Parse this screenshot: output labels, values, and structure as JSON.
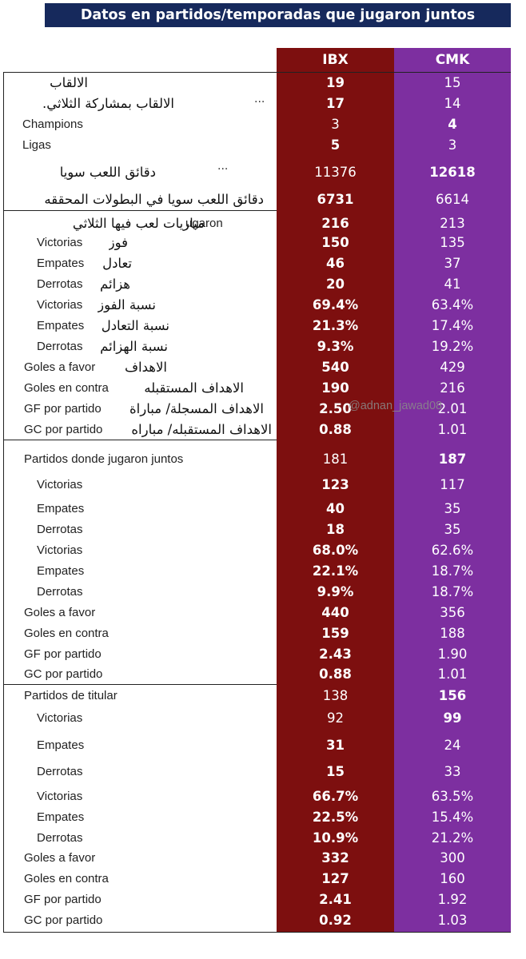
{
  "title": "Datos en partidos/temporadas que jugaron juntos",
  "columns": {
    "ibx": "IBX",
    "cmk": "CMK"
  },
  "watermark": "@adnan_jawad08",
  "dots": "...",
  "colors": {
    "ibx": "#7d0f0f",
    "cmk": "#7d2fa0",
    "title_bg": "#16295c"
  },
  "rows": [
    {
      "es": "",
      "ar": "الالقاب",
      "ibx": "19",
      "cmk": "15",
      "bold": "ibx"
    },
    {
      "es": "",
      "ar": "الالقاب بمشاركة الثلاثي.",
      "ibx": "17",
      "cmk": "14",
      "bold": "ibx"
    },
    {
      "es": "Champions",
      "ar": "",
      "ibx": "3",
      "cmk": "4",
      "bold": "cmk"
    },
    {
      "es": "Ligas",
      "ar": "",
      "ibx": "5",
      "cmk": "3",
      "bold": "ibx"
    },
    {
      "es": "",
      "ar": "دقائق اللعب سويا",
      "ibx": "11376",
      "cmk": "12618",
      "bold": "cmk"
    },
    {
      "es": "",
      "ar": "دقائق اللعب سويا في البطولات المحققه",
      "ibx": "6731",
      "cmk": "6614",
      "bold": "ibx"
    },
    {
      "es": "ugaron",
      "ar": "مباريات لعب فيها الثلاثي",
      "ibx": "216",
      "cmk": "213",
      "bold": "ibx"
    },
    {
      "es": "Victorias",
      "ar": "فوز",
      "ibx": "150",
      "cmk": "135",
      "bold": "ibx"
    },
    {
      "es": "Empates",
      "ar": "تعادل",
      "ibx": "46",
      "cmk": "37",
      "bold": "ibx"
    },
    {
      "es": "Derrotas",
      "ar": "هزائم",
      "ibx": "20",
      "cmk": "41",
      "bold": "ibx"
    },
    {
      "es": "Victorias",
      "ar": "نسبة الفوز",
      "ibx": "69.4%",
      "cmk": "63.4%",
      "bold": "ibx"
    },
    {
      "es": "Empates",
      "ar": "نسبة التعادل",
      "ibx": "21.3%",
      "cmk": "17.4%",
      "bold": "ibx"
    },
    {
      "es": "Derrotas",
      "ar": "نسبة الهزائم",
      "ibx": "9.3%",
      "cmk": "19.2%",
      "bold": "ibx"
    },
    {
      "es": "Goles a favor",
      "ar": "الاهداف",
      "ibx": "540",
      "cmk": "429",
      "bold": "ibx"
    },
    {
      "es": "Goles en contra",
      "ar": "الاهداف المستقبله",
      "ibx": "190",
      "cmk": "216",
      "bold": "ibx"
    },
    {
      "es": "GF por partido",
      "ar": "الاهداف المسجلة/ مباراة",
      "ibx": "2.50",
      "cmk": "2.01",
      "bold": "ibx"
    },
    {
      "es": "GC por partido",
      "ar": "الاهداف المستقبله/ مباراه",
      "ibx": "0.88",
      "cmk": "1.01",
      "bold": "ibx"
    },
    {
      "es": "Partidos donde jugaron juntos",
      "ar": "",
      "ibx": "181",
      "cmk": "187",
      "bold": "cmk"
    },
    {
      "es": "Victorias",
      "ar": "",
      "ibx": "123",
      "cmk": "117",
      "bold": "ibx"
    },
    {
      "es": "Empates",
      "ar": "",
      "ibx": "40",
      "cmk": "35",
      "bold": "ibx"
    },
    {
      "es": "Derrotas",
      "ar": "",
      "ibx": "18",
      "cmk": "35",
      "bold": "ibx"
    },
    {
      "es": "Victorias",
      "ar": "",
      "ibx": "68.0%",
      "cmk": "62.6%",
      "bold": "ibx"
    },
    {
      "es": "Empates",
      "ar": "",
      "ibx": "22.1%",
      "cmk": "18.7%",
      "bold": "ibx"
    },
    {
      "es": "Derrotas",
      "ar": "",
      "ibx": "9.9%",
      "cmk": "18.7%",
      "bold": "ibx"
    },
    {
      "es": "Goles a favor",
      "ar": "",
      "ibx": "440",
      "cmk": "356",
      "bold": "ibx"
    },
    {
      "es": "Goles en contra",
      "ar": "",
      "ibx": "159",
      "cmk": "188",
      "bold": "ibx"
    },
    {
      "es": "GF por partido",
      "ar": "",
      "ibx": "2.43",
      "cmk": "1.90",
      "bold": "ibx"
    },
    {
      "es": "GC por partido",
      "ar": "",
      "ibx": "0.88",
      "cmk": "1.01",
      "bold": "ibx"
    },
    {
      "es": "Partidos de titular",
      "ar": "",
      "ibx": "138",
      "cmk": "156",
      "bold": "cmk"
    },
    {
      "es": "Victorias",
      "ar": "",
      "ibx": "92",
      "cmk": "99",
      "bold": "cmk"
    },
    {
      "es": "Empates",
      "ar": "",
      "ibx": "31",
      "cmk": "24",
      "bold": "ibx"
    },
    {
      "es": "Derrotas",
      "ar": "",
      "ibx": "15",
      "cmk": "33",
      "bold": "ibx"
    },
    {
      "es": "Victorias",
      "ar": "",
      "ibx": "66.7%",
      "cmk": "63.5%",
      "bold": "ibx"
    },
    {
      "es": "Empates",
      "ar": "",
      "ibx": "22.5%",
      "cmk": "15.4%",
      "bold": "ibx"
    },
    {
      "es": "Derrotas",
      "ar": "",
      "ibx": "10.9%",
      "cmk": "21.2%",
      "bold": "ibx"
    },
    {
      "es": "Goles a favor",
      "ar": "",
      "ibx": "332",
      "cmk": "300",
      "bold": "ibx"
    },
    {
      "es": "Goles en contra",
      "ar": "",
      "ibx": "127",
      "cmk": "160",
      "bold": "ibx"
    },
    {
      "es": "GF por partido",
      "ar": "",
      "ibx": "2.41",
      "cmk": "1.92",
      "bold": "ibx"
    },
    {
      "es": "GC por partido",
      "ar": "",
      "ibx": "0.92",
      "cmk": "1.03",
      "bold": "ibx"
    }
  ]
}
